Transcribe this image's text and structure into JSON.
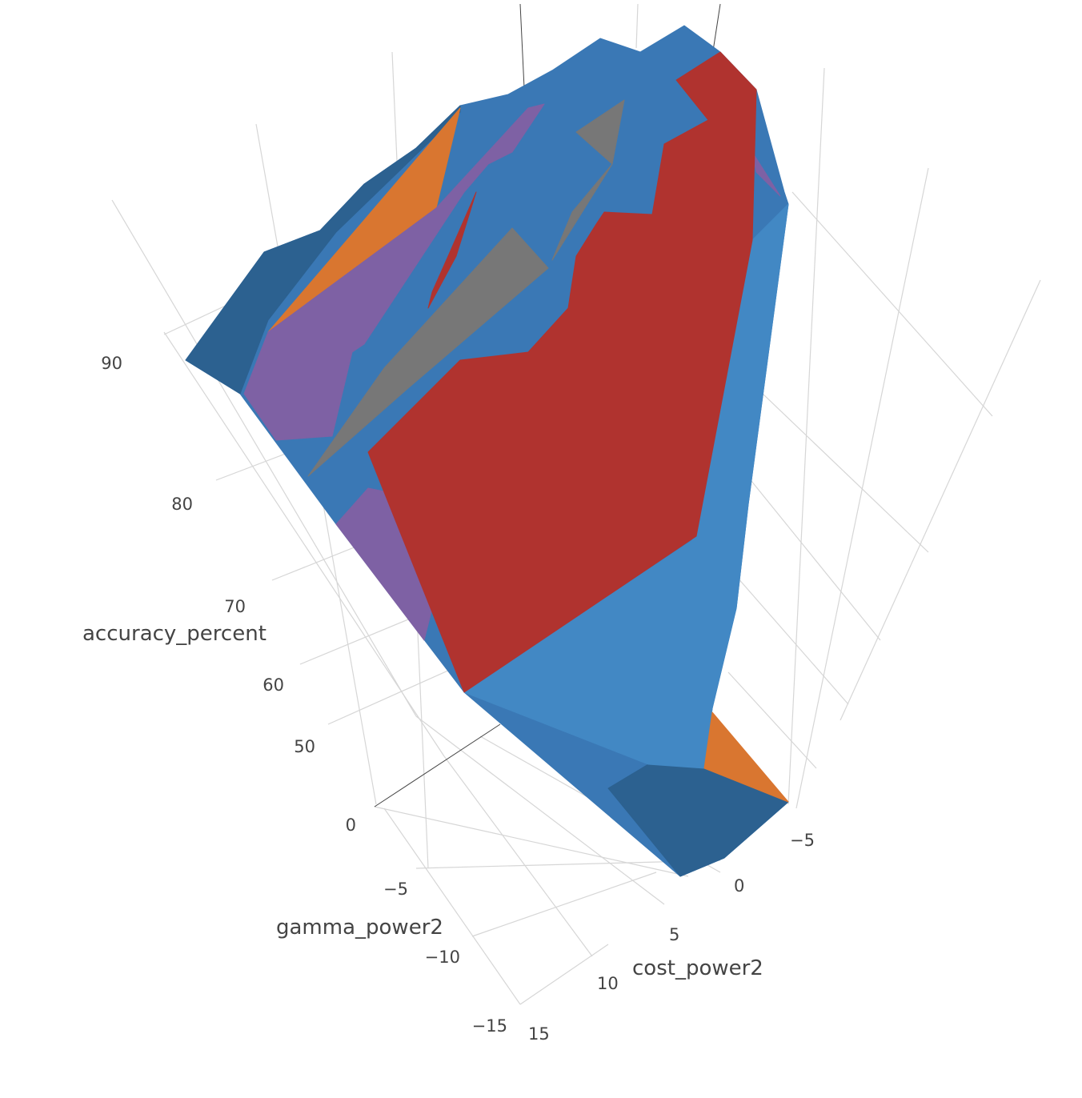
{
  "chart_data": {
    "type": "surface3d",
    "axes": {
      "x": {
        "title": "cost_power2",
        "ticks": [
          "−5",
          "0",
          "5",
          "10",
          "15"
        ],
        "range": [
          -5,
          15
        ]
      },
      "y": {
        "title": "gamma_power2",
        "ticks": [
          "0",
          "−5",
          "−10",
          "−15"
        ],
        "range": [
          -15,
          0
        ]
      },
      "z": {
        "title": "accuracy_percent",
        "ticks": [
          "50",
          "60",
          "70",
          "80",
          "90"
        ],
        "range": [
          45,
          95
        ]
      }
    },
    "colors": {
      "blue": "#3a78b5",
      "blue_dark": "#2c6190",
      "blue_light": "#4288c4",
      "red": "#b0332f",
      "orange": "#d97630",
      "purple": "#7e61a4",
      "gray": "#777777"
    },
    "grid": true,
    "legend": "none"
  }
}
